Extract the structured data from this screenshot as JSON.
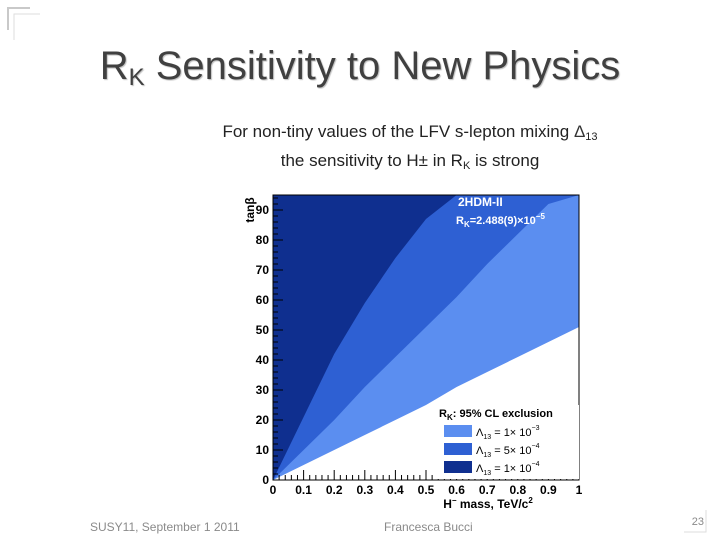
{
  "slide": {
    "title_main": "R",
    "title_sub": "K",
    "title_rest": " Sensitivity to New Physics",
    "subtitle_line1_text": "For non-tiny values of the LFV s-lepton mixing ",
    "subtitle_line1_symbol": "Δ",
    "subtitle_line1_sub": "13",
    "subtitle_line2_pre": "the sensitivity to H± in R",
    "subtitle_line2_sub": "K",
    "subtitle_line2_post": " is strong",
    "footer_left": "SUSY11, September 1 2011",
    "footer_center": "Francesca Bucci",
    "page_number": "23"
  },
  "colors": {
    "plot_background": "#ffffff",
    "band_light": "#5b8ef0",
    "band_medium": "#2e60d3",
    "band_dark": "#0f2f8f",
    "title_text": "#404040"
  },
  "chart_data": {
    "type": "area",
    "title": "2HDM-II",
    "annotation": {
      "pre": "R",
      "sub": "K",
      "mid": "=2.488(9)×10",
      "sup": "−5"
    },
    "xlabel": {
      "pre": "H",
      "sup1": "−",
      "mid": " mass, TeV/c",
      "sup2": "2"
    },
    "ylabel": "tanβ",
    "xlim": [
      0,
      1
    ],
    "ylim": [
      0,
      95
    ],
    "xticks": [
      0,
      0.1,
      0.2,
      0.3,
      0.4,
      0.5,
      0.6,
      0.7,
      0.8,
      0.9,
      1
    ],
    "xtick_labels": [
      "0",
      "0.1",
      "0.2",
      "0.3",
      "0.4",
      "0.5",
      "0.6",
      "0.7",
      "0.8",
      "0.9",
      "1"
    ],
    "yticks": [
      0,
      10,
      20,
      30,
      40,
      50,
      60,
      70,
      80,
      90
    ],
    "ytick_labels": [
      "0",
      "10",
      "20",
      "30",
      "40",
      "50",
      "60",
      "70",
      "80",
      "90"
    ],
    "legend": {
      "title_pre": "R",
      "title_sub": "K",
      "title_post": ": 95% CL exclusion",
      "position": "bottom-right",
      "entries": [
        {
          "sym": "Λ",
          "sub": "13",
          "mid": " = 1× 10",
          "sup": "−3",
          "color": "#5b8ef0"
        },
        {
          "sym": "Λ",
          "sub": "13",
          "mid": " = 5× 10",
          "sup": "−4",
          "color": "#2e60d3"
        },
        {
          "sym": "Λ",
          "sub": "13",
          "mid": " = 1× 10",
          "sup": "−4",
          "color": "#0f2f8f"
        }
      ]
    },
    "series": [
      {
        "name": "Λ13 = 1×10^-3 (excluded region boundary)",
        "color": "#5b8ef0",
        "x": [
          0,
          0.1,
          0.2,
          0.3,
          0.4,
          0.5,
          0.6,
          0.7,
          0.8,
          0.9,
          1.0
        ],
        "y": [
          0,
          5,
          10,
          15,
          20,
          25,
          31,
          36,
          41,
          46,
          51
        ]
      },
      {
        "name": "Λ13 = 5×10^-4 (excluded region boundary)",
        "color": "#2e60d3",
        "x": [
          0,
          0.1,
          0.2,
          0.3,
          0.4,
          0.5,
          0.6,
          0.7,
          0.8,
          0.9,
          1.0
        ],
        "y": [
          0,
          10,
          20,
          31,
          41,
          51,
          61,
          72,
          82,
          92,
          95
        ]
      },
      {
        "name": "Λ13 = 1×10^-4 (excluded region boundary)",
        "color": "#0f2f8f",
        "x": [
          0,
          0.1,
          0.2,
          0.3,
          0.4,
          0.5,
          0.6
        ],
        "y": [
          0,
          21,
          42,
          59,
          74,
          87,
          95
        ]
      }
    ]
  }
}
